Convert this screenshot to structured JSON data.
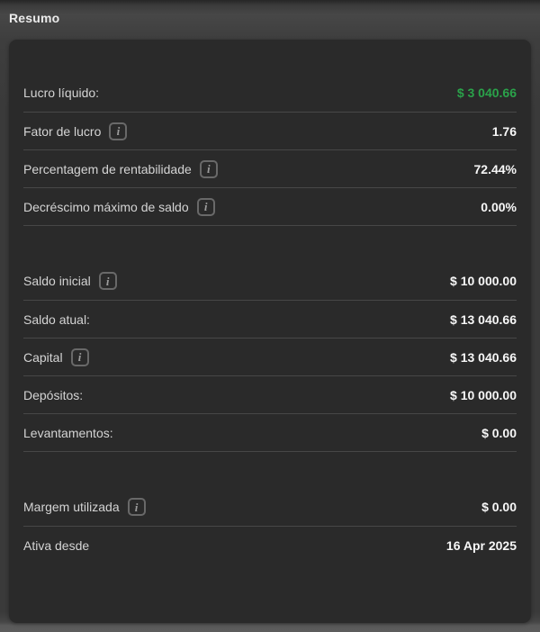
{
  "header": {
    "title": "Resumo"
  },
  "colors": {
    "positive": "#2aa24a",
    "card_bg": "#2a2a2a",
    "divider": "#474747"
  },
  "icons": {
    "info": "i"
  },
  "sections": [
    {
      "rows": [
        {
          "label": "Lucro líquido:",
          "value": "$ 3 040.66",
          "info": false,
          "positive": true
        },
        {
          "label": "Fator de lucro",
          "value": "1.76",
          "info": true
        },
        {
          "label": "Percentagem de rentabilidade",
          "value": "72.44%",
          "info": true
        },
        {
          "label": "Decréscimo máximo de saldo",
          "value": "0.00%",
          "info": true
        }
      ]
    },
    {
      "rows": [
        {
          "label": "Saldo inicial",
          "value": "$ 10 000.00",
          "info": true
        },
        {
          "label": "Saldo atual:",
          "value": "$ 13 040.66",
          "info": false
        },
        {
          "label": "Capital",
          "value": "$ 13 040.66",
          "info": true
        },
        {
          "label": "Depósitos:",
          "value": "$ 10 000.00",
          "info": false
        },
        {
          "label": "Levantamentos:",
          "value": "$ 0.00",
          "info": false
        }
      ]
    },
    {
      "rows": [
        {
          "label": "Margem utilizada",
          "value": "$ 0.00",
          "info": true
        },
        {
          "label": "Ativa desde",
          "value": "16 Apr 2025",
          "info": false
        }
      ]
    }
  ]
}
